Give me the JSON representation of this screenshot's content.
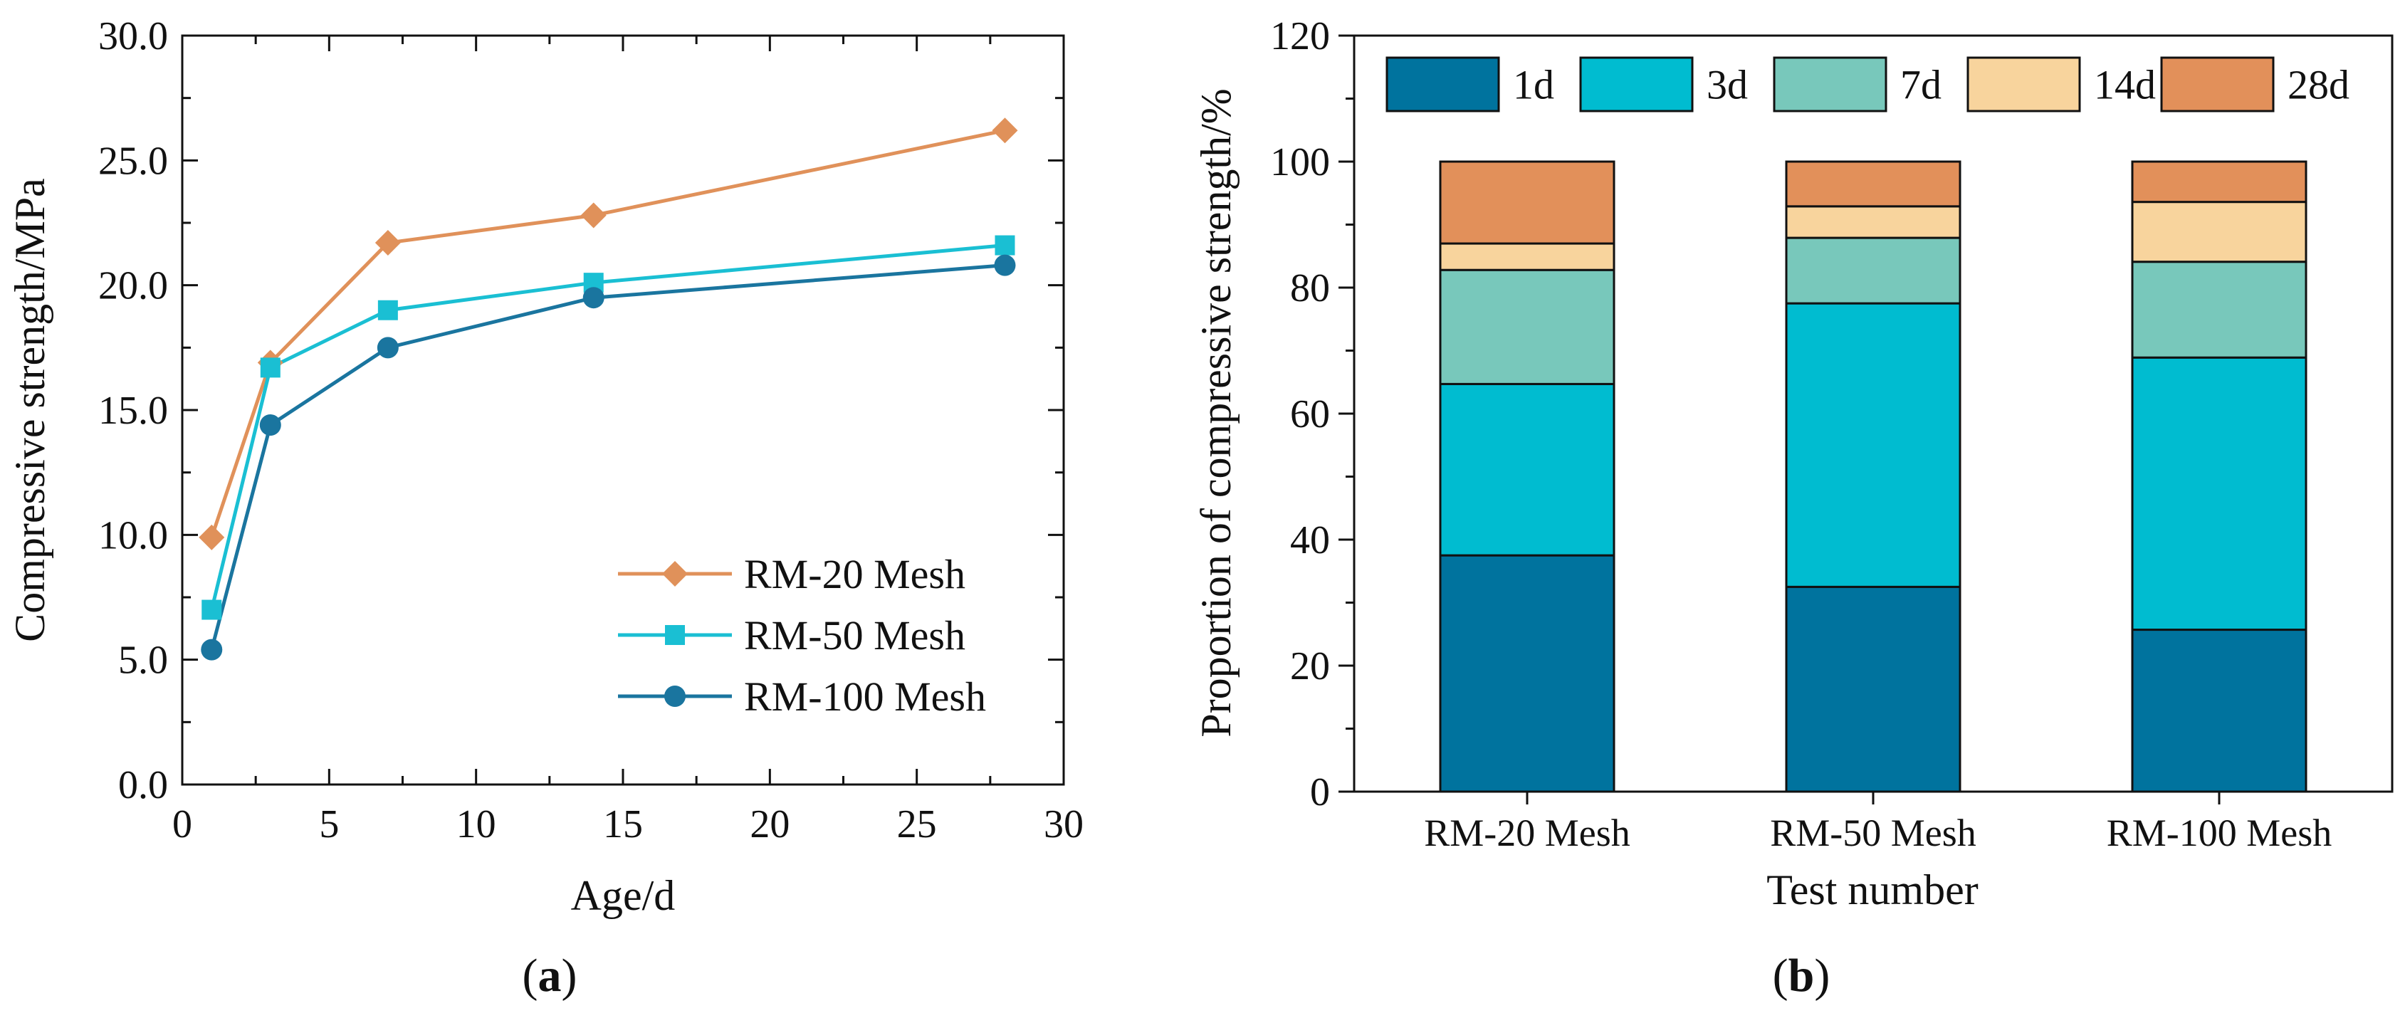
{
  "chart_data": [
    {
      "type": "line",
      "panel_label": "a",
      "xlabel": "Age/d",
      "ylabel": "Compressive strength/MPa",
      "xlim": [
        0,
        30
      ],
      "ylim": [
        0,
        30
      ],
      "x_ticks": [
        0,
        5,
        10,
        15,
        20,
        25,
        30
      ],
      "x_tick_labels": [
        "0",
        "5",
        "10",
        "15",
        "20",
        "25",
        "30"
      ],
      "y_ticks": [
        0,
        5,
        10,
        15,
        20,
        25,
        30
      ],
      "y_tick_labels": [
        "0.0",
        "5.0",
        "10.0",
        "15.0",
        "20.0",
        "25.0",
        "30.0"
      ],
      "grid": false,
      "legend_position": "bottom-right",
      "x": [
        1,
        3,
        7,
        14,
        28
      ],
      "series": [
        {
          "name": "RM-20 Mesh",
          "marker": "diamond",
          "color": "#E0915A",
          "values": [
            9.9,
            16.9,
            21.7,
            22.8,
            26.2
          ]
        },
        {
          "name": "RM-50 Mesh",
          "marker": "square",
          "color": "#1ABFD3",
          "values": [
            7.0,
            16.7,
            19.0,
            20.1,
            21.6
          ]
        },
        {
          "name": "RM-100 Mesh",
          "marker": "circle",
          "color": "#1A759F",
          "values": [
            5.4,
            14.4,
            17.5,
            19.5,
            20.8
          ]
        }
      ]
    },
    {
      "type": "bar",
      "stacked": true,
      "panel_label": "b",
      "xlabel": "Test number",
      "ylabel": "Proportion of compressive strength/%",
      "ylim": [
        0,
        120
      ],
      "y_ticks": [
        0,
        20,
        40,
        60,
        80,
        100,
        120
      ],
      "y_tick_labels": [
        "0",
        "20",
        "40",
        "60",
        "80",
        "100",
        "120"
      ],
      "grid": false,
      "legend_position": "top",
      "categories": [
        "RM-20 Mesh",
        "RM-50 Mesh",
        "RM-100 Mesh"
      ],
      "series": [
        {
          "name": "1d",
          "color": "#00739E",
          "values": [
            37.5,
            32.5,
            25.7
          ]
        },
        {
          "name": "3d",
          "color": "#00BCD0",
          "values": [
            27.2,
            45.0,
            43.2
          ]
        },
        {
          "name": "7d",
          "color": "#78C8BB",
          "values": [
            18.1,
            10.4,
            15.2
          ]
        },
        {
          "name": "14d",
          "color": "#F8D49D",
          "values": [
            4.2,
            5.0,
            9.5
          ]
        },
        {
          "name": "28d",
          "color": "#E2905A",
          "values": [
            13.0,
            7.1,
            6.4
          ]
        }
      ]
    }
  ]
}
